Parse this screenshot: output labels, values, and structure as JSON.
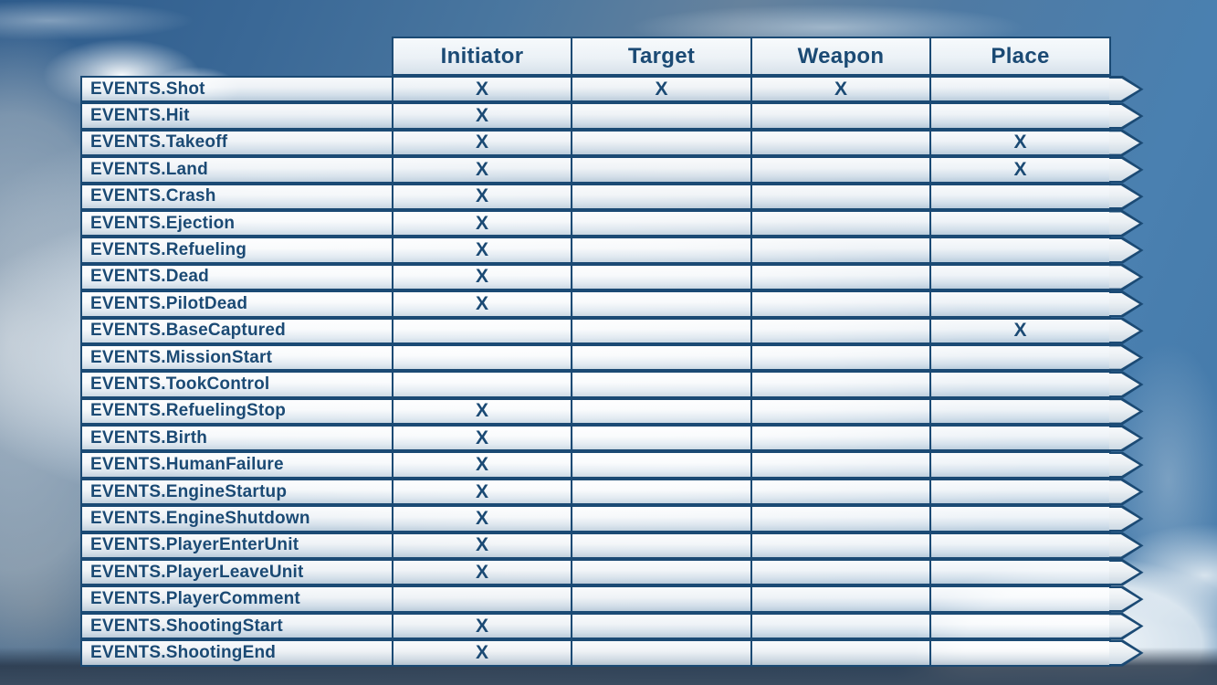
{
  "palette": {
    "navy": "#1b4a74",
    "sky_blue": "#4a80b0",
    "cloud_white": "#f5f8fa",
    "cell_top": "#ffffff",
    "cell_bottom": "#ccd9e4",
    "bottom_band": "#3a4c60"
  },
  "chart_data": {
    "type": "table",
    "title": "",
    "mark": "X",
    "columns": [
      "Initiator",
      "Target",
      "Weapon",
      "Place"
    ],
    "rows": [
      {
        "event": "EVENTS.Shot",
        "marks": [
          "X",
          "X",
          "X",
          ""
        ]
      },
      {
        "event": "EVENTS.Hit",
        "marks": [
          "X",
          "",
          "",
          ""
        ]
      },
      {
        "event": "EVENTS.Takeoff",
        "marks": [
          "X",
          "",
          "",
          "X"
        ]
      },
      {
        "event": "EVENTS.Land",
        "marks": [
          "X",
          "",
          "",
          "X"
        ]
      },
      {
        "event": "EVENTS.Crash",
        "marks": [
          "X",
          "",
          "",
          ""
        ]
      },
      {
        "event": "EVENTS.Ejection",
        "marks": [
          "X",
          "",
          "",
          ""
        ]
      },
      {
        "event": "EVENTS.Refueling",
        "marks": [
          "X",
          "",
          "",
          ""
        ]
      },
      {
        "event": "EVENTS.Dead",
        "marks": [
          "X",
          "",
          "",
          ""
        ]
      },
      {
        "event": "EVENTS.PilotDead",
        "marks": [
          "X",
          "",
          "",
          ""
        ]
      },
      {
        "event": "EVENTS.BaseCaptured",
        "marks": [
          "",
          "",
          "",
          "X"
        ]
      },
      {
        "event": "EVENTS.MissionStart",
        "marks": [
          "",
          "",
          "",
          ""
        ]
      },
      {
        "event": "EVENTS.TookControl",
        "marks": [
          "",
          "",
          "",
          ""
        ]
      },
      {
        "event": "EVENTS.RefuelingStop",
        "marks": [
          "X",
          "",
          "",
          ""
        ]
      },
      {
        "event": "EVENTS.Birth",
        "marks": [
          "X",
          "",
          "",
          ""
        ]
      },
      {
        "event": "EVENTS.HumanFailure",
        "marks": [
          "X",
          "",
          "",
          ""
        ]
      },
      {
        "event": "EVENTS.EngineStartup",
        "marks": [
          "X",
          "",
          "",
          ""
        ]
      },
      {
        "event": "EVENTS.EngineShutdown",
        "marks": [
          "X",
          "",
          "",
          ""
        ]
      },
      {
        "event": "EVENTS.PlayerEnterUnit",
        "marks": [
          "X",
          "",
          "",
          ""
        ]
      },
      {
        "event": "EVENTS.PlayerLeaveUnit",
        "marks": [
          "X",
          "",
          "",
          ""
        ]
      },
      {
        "event": "EVENTS.PlayerComment",
        "marks": [
          "",
          "",
          "",
          ""
        ]
      },
      {
        "event": "EVENTS.ShootingStart",
        "marks": [
          "X",
          "",
          "",
          ""
        ]
      },
      {
        "event": "EVENTS.ShootingEnd",
        "marks": [
          "X",
          "",
          "",
          ""
        ]
      }
    ]
  }
}
